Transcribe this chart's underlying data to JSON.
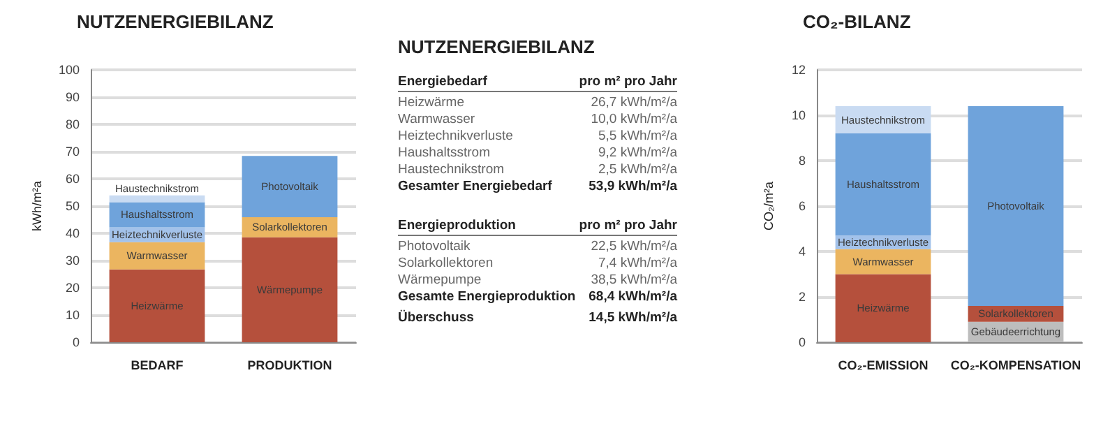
{
  "chart_data": [
    {
      "type": "bar",
      "title": "NUTZENERGIEBILANZ",
      "ylabel": "kWh/m²a",
      "categories": [
        "BEDARF",
        "PRODUKTION"
      ],
      "stacked": true,
      "grid": "y",
      "ylim": [
        0,
        100
      ],
      "yticks": [
        0,
        10,
        20,
        30,
        40,
        50,
        60,
        70,
        80,
        90,
        100
      ],
      "series": [
        {
          "name": "Heizwärme",
          "color": "#b5503c",
          "values": [
            26.7,
            null
          ]
        },
        {
          "name": "Warmwasser",
          "color": "#ebb560",
          "values": [
            10.0,
            null
          ]
        },
        {
          "name": "Heiztechnikverluste",
          "color": "#a3c2ea",
          "values": [
            5.5,
            null
          ]
        },
        {
          "name": "Haushaltsstrom",
          "color": "#6fa3db",
          "values": [
            9.2,
            null
          ]
        },
        {
          "name": "Haustechnikstrom",
          "color": "#c9dbf2",
          "values": [
            2.5,
            null
          ]
        },
        {
          "name": "Wärmepumpe",
          "color": "#b5503c",
          "values": [
            null,
            38.5
          ]
        },
        {
          "name": "Solarkollektoren",
          "color": "#ebb560",
          "values": [
            null,
            7.4
          ]
        },
        {
          "name": "Photovoltaik",
          "color": "#6fa3db",
          "values": [
            null,
            22.5
          ]
        }
      ]
    },
    {
      "type": "other",
      "title": "NUTZENERGIEBILANZ",
      "annotations": [
        "Energiebedarf",
        "pro m² pro Jahr",
        "Heizwärme",
        "26,7 kWh/m²/a",
        "Warmwasser",
        "10,0 kWh/m²/a",
        "Heiztechnikverluste",
        "5,5 kWh/m²/a",
        "Haushaltsstrom",
        "9,2 kWh/m²/a",
        "Haustechnikstrom",
        "2,5 kWh/m²/a",
        "Gesamter Energiebedarf",
        "53,9 kWh/m²/a",
        "Energieproduktion",
        "pro m² pro Jahr",
        "Photovoltaik",
        "22,5 kWh/m²/a",
        "Solarkollektoren",
        "7,4 kWh/m²/a",
        "Wärmepumpe",
        "38,5 kWh/m²/a",
        "Gesamte Energieproduktion",
        "68,4 kWh/m²/a",
        "Überschuss",
        "14,5 kWh/m²/a"
      ]
    },
    {
      "type": "bar",
      "title": "CO₂-BILANZ",
      "ylabel": "CO₂/m²a",
      "categories": [
        "CO₂-EMISSION",
        "CO₂-KOMPENSATION"
      ],
      "stacked": true,
      "grid": "y",
      "ylim": [
        0,
        12
      ],
      "yticks": [
        0,
        2,
        4,
        6,
        8,
        10,
        12
      ],
      "series": [
        {
          "name": "Heizwärme",
          "color": "#b5503c",
          "values": [
            3.0,
            null
          ]
        },
        {
          "name": "Warmwasser",
          "color": "#ebb560",
          "values": [
            1.1,
            null
          ]
        },
        {
          "name": "Heiztechnikverluste",
          "color": "#a3c2ea",
          "values": [
            0.6,
            null
          ]
        },
        {
          "name": "Haushaltsstrom",
          "color": "#6fa3db",
          "values": [
            4.5,
            null
          ]
        },
        {
          "name": "Haustechnikstrom",
          "color": "#c9dbf2",
          "values": [
            1.2,
            null
          ]
        },
        {
          "name": "Gebäudeerrichtung",
          "color": "#bdbdbd",
          "values": [
            null,
            0.9
          ]
        },
        {
          "name": "Solarkollektoren",
          "color": "#b5503c",
          "values": [
            null,
            0.7
          ]
        },
        {
          "name": "Photovoltaik",
          "color": "#6fa3db",
          "values": [
            null,
            8.8
          ]
        }
      ]
    }
  ]
}
